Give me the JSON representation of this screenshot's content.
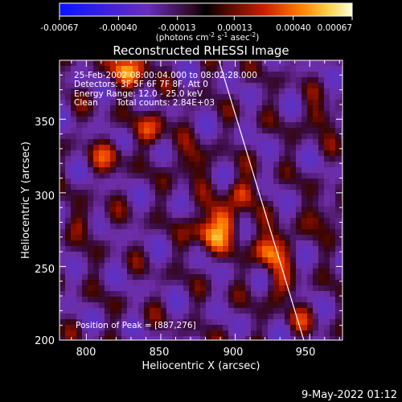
{
  "colorbar": {
    "tick_labels": [
      "-0.00067",
      "-0.00040",
      "-0.00013",
      "0.00013",
      "0.00040",
      "0.00067"
    ],
    "tick_values": [
      -0.00067,
      -0.0004,
      -0.00013,
      0.00013,
      0.0004,
      0.00067
    ],
    "range": [
      -0.00067,
      0.00067
    ],
    "units_text": "(photons cm",
    "units_exp1": "-2",
    "units_mid": " s",
    "units_exp2": "-1",
    "units_end": " asec",
    "units_exp3": "-2",
    "units_close": ")"
  },
  "chart_data": {
    "type": "heatmap",
    "title": "Reconstructed RHESSI Image",
    "xlabel": "Heliocentric X (arcsec)",
    "ylabel": "Heliocentric Y (arcsec)",
    "xlim": [
      782,
      972
    ],
    "ylim": [
      200,
      390
    ],
    "x_ticks": [
      800,
      850,
      900,
      950
    ],
    "y_ticks": [
      200,
      250,
      300,
      350
    ],
    "x_tick_labels": [
      "800",
      "850",
      "900",
      "950"
    ],
    "y_tick_labels": [
      "200",
      "250",
      "300",
      "350"
    ],
    "peak": [
      887,
      276
    ],
    "limb_line": [
      [
        889,
        390
      ],
      [
        946,
        200
      ]
    ]
  },
  "annotations": {
    "line1": "25-Feb-2002 08:00:04.000 to 08:02:28.000",
    "line2": "Detectors: 3F 5F 6F 7F 8F, Att 0",
    "line3": "Energy Range: 12.0 - 25.0 keV",
    "line4a": "Clean",
    "line4b": "Total counts: 2.84E+03",
    "peak_label": "Position of Peak = [887,276]"
  },
  "footer": {
    "timestamp": "9-May-2022 01:12"
  }
}
